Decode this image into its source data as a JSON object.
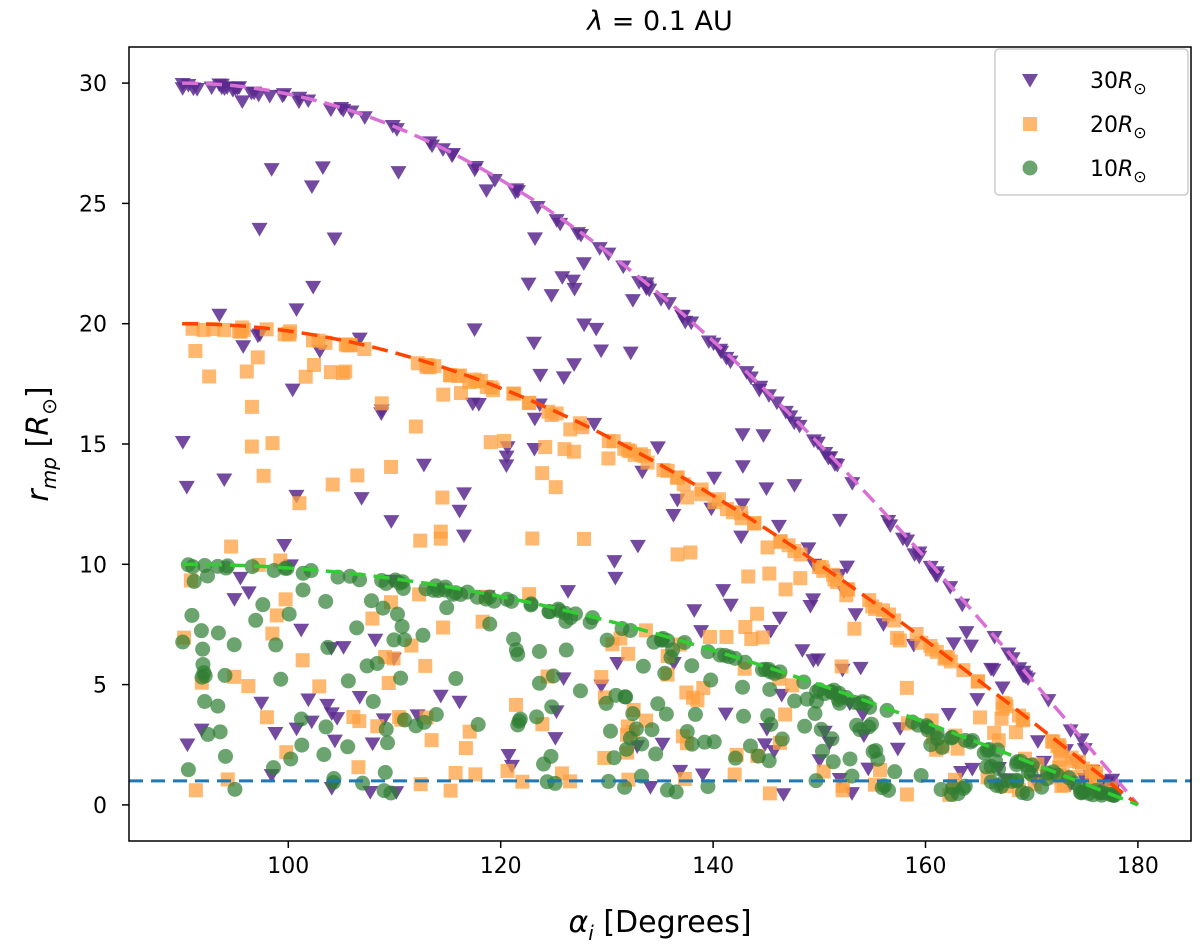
{
  "chart_data": {
    "type": "scatter",
    "title": {
      "symbol": "λ",
      "rest": " = 0.1 AU"
    },
    "xlabel": {
      "symbol": "α",
      "sub": "i",
      "rest": " [Degrees]"
    },
    "ylabel": {
      "symbol": "r",
      "sub": "mp",
      "rest_open": " [",
      "unit": "R",
      "unit_sub": "⊙",
      "rest_close": "]"
    },
    "xlim": [
      85,
      185
    ],
    "ylim": [
      -1.5,
      31.5
    ],
    "xticks": [
      "100",
      "120",
      "140",
      "160",
      "180"
    ],
    "yticks": [
      "0",
      "5",
      "10",
      "15",
      "20",
      "25",
      "30"
    ],
    "xtick_values": [
      100,
      120,
      140,
      160,
      180
    ],
    "ytick_values": [
      0,
      5,
      10,
      15,
      20,
      25,
      30
    ],
    "legend_position": "top-right",
    "reference_line": {
      "y": 1,
      "color": "#1f77b4",
      "style": "dashed"
    },
    "series": [
      {
        "name": "30R",
        "label_main": "30",
        "label_R": "R",
        "label_sub": "⊙",
        "marker": "triangle-down",
        "color": "#5b2a8e",
        "r0": 30,
        "count": 300,
        "seed": 11,
        "fit_color": "#da70d6"
      },
      {
        "name": "20R",
        "label_main": "20",
        "label_R": "R",
        "label_sub": "⊙",
        "marker": "square",
        "color": "#ffa040",
        "r0": 20,
        "count": 300,
        "seed": 23,
        "fit_color": "#ff4500"
      },
      {
        "name": "10R",
        "label_main": "10",
        "label_R": "R",
        "label_sub": "⊙",
        "marker": "circle",
        "color": "#2e7d32",
        "r0": 10,
        "count": 300,
        "seed": 37,
        "fit_color": "#32cd32"
      }
    ]
  }
}
